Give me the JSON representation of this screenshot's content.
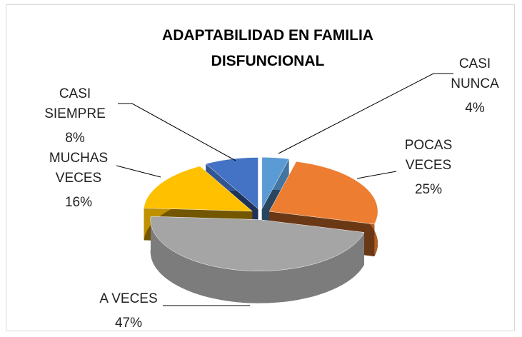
{
  "chart_data": {
    "type": "pie3d",
    "title": "ADAPTABILIDAD EN FAMILIA DISFUNCIONAL",
    "categories": [
      "CASI NUNCA",
      "POCAS VECES",
      "A VECES",
      "MUCHAS VECES",
      "CASI SIEMPRE"
    ],
    "values": [
      4,
      25,
      47,
      16,
      8
    ],
    "value_labels": [
      "4%",
      "25%",
      "47%",
      "16%",
      "8%"
    ],
    "colors": [
      "#5b9bd5",
      "#ed7d31",
      "#a5a5a5",
      "#ffc000",
      "#4472c4"
    ]
  }
}
